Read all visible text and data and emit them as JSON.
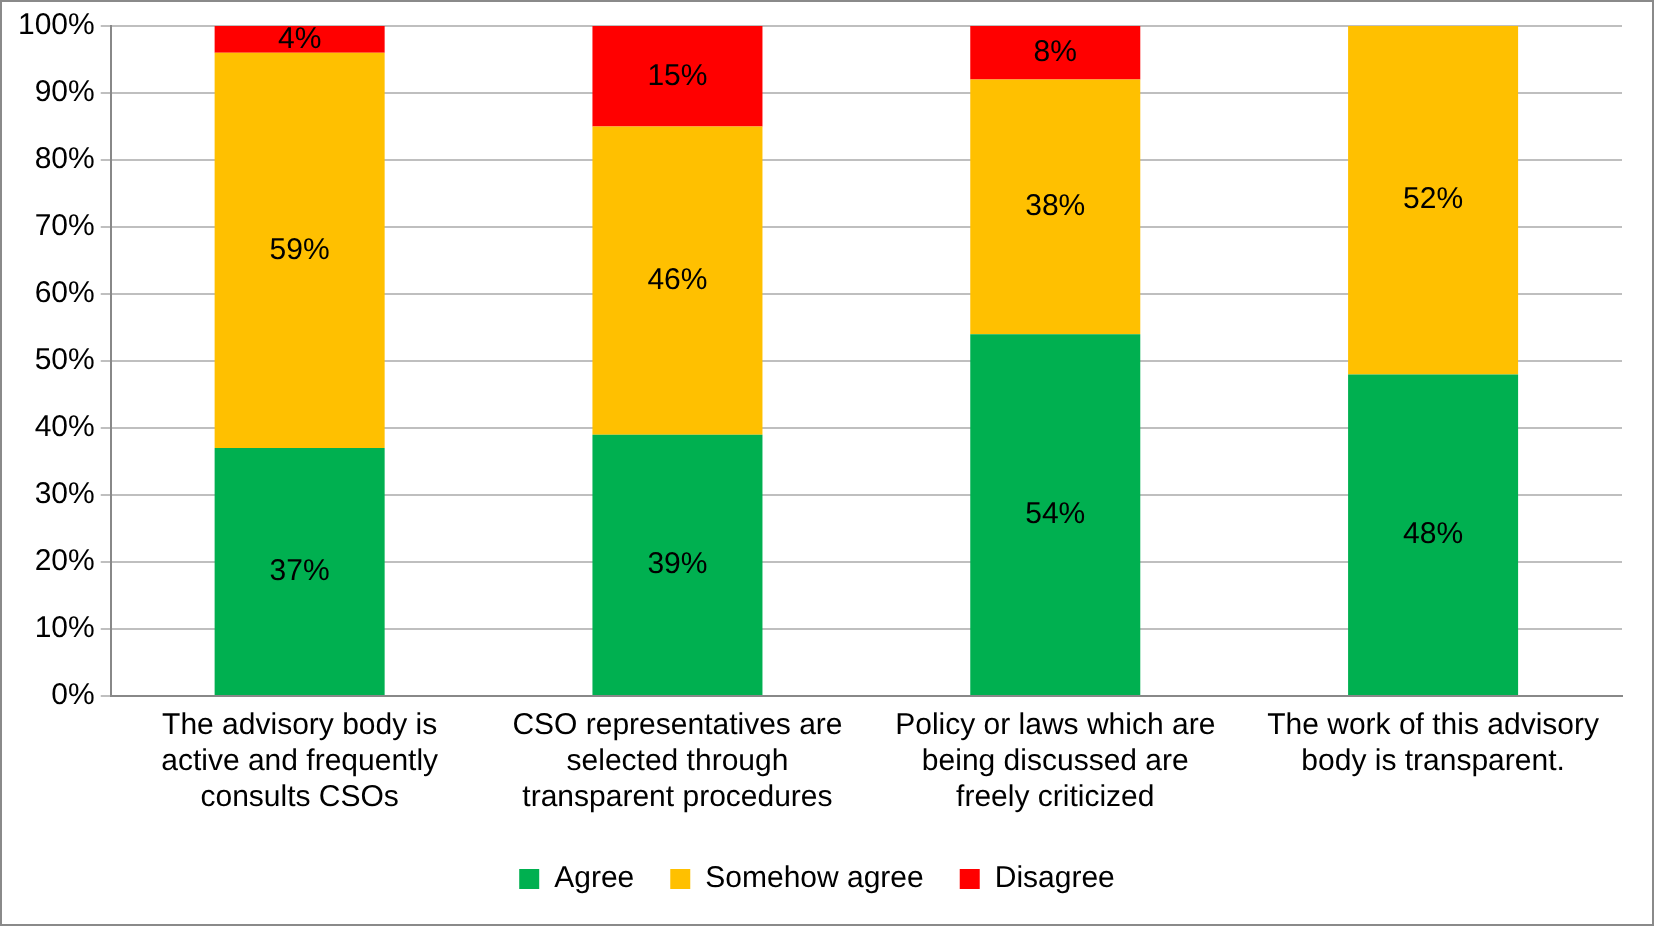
{
  "chart_data": {
    "type": "bar",
    "stacked": true,
    "categories": [
      "The advisory body is active and frequently consults CSOs",
      "CSO representatives are selected through transparent procedures",
      "Policy or laws which are being discussed are freely criticized",
      "The work of this advisory body is transparent."
    ],
    "series": [
      {
        "name": "Agree",
        "color": "#00b050",
        "values": [
          37,
          39,
          54,
          48
        ],
        "value_labels": [
          "37%",
          "39%",
          "54%",
          "48%"
        ]
      },
      {
        "name": "Somehow agree",
        "color": "#ffc000",
        "values": [
          59,
          46,
          38,
          52
        ],
        "value_labels": [
          "59%",
          "46%",
          "38%",
          "52%"
        ]
      },
      {
        "name": "Disagree",
        "color": "#ff0000",
        "values": [
          4,
          15,
          8,
          0
        ],
        "value_labels": [
          "4%",
          "15%",
          "8%",
          null
        ]
      }
    ],
    "ylim": [
      0,
      100
    ],
    "yticks": [
      {
        "value": 0,
        "label": "0%"
      },
      {
        "value": 10,
        "label": "10%"
      },
      {
        "value": 20,
        "label": "20%"
      },
      {
        "value": 30,
        "label": "30%"
      },
      {
        "value": 40,
        "label": "40%"
      },
      {
        "value": 50,
        "label": "50%"
      },
      {
        "value": 60,
        "label": "60%"
      },
      {
        "value": 70,
        "label": "70%"
      },
      {
        "value": 80,
        "label": "80%"
      },
      {
        "value": 90,
        "label": "90%"
      },
      {
        "value": 100,
        "label": "100%"
      }
    ],
    "grid": "y",
    "legend": "bottom"
  }
}
